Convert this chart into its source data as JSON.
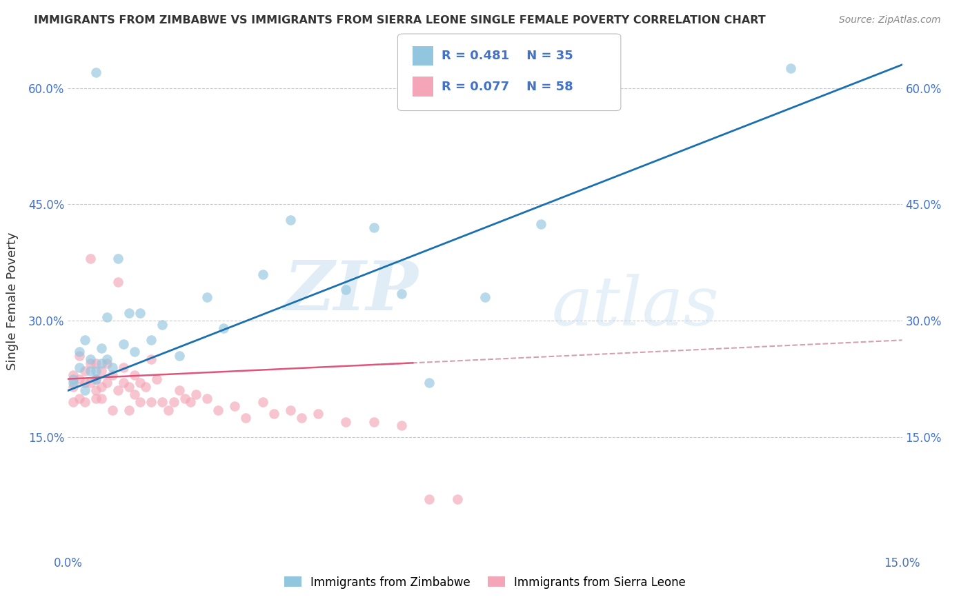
{
  "title": "IMMIGRANTS FROM ZIMBABWE VS IMMIGRANTS FROM SIERRA LEONE SINGLE FEMALE POVERTY CORRELATION CHART",
  "source": "Source: ZipAtlas.com",
  "ylabel": "Single Female Poverty",
  "legend_label1": "Immigrants from Zimbabwe",
  "legend_label2": "Immigrants from Sierra Leone",
  "r1": "0.481",
  "n1": "35",
  "r2": "0.077",
  "n2": "58",
  "color1": "#92c5de",
  "color2": "#f4a6b8",
  "line1_color": "#1a6faf",
  "line2_color": "#e0547a",
  "line2_dashed_color": "#d4a0b0",
  "xmin": 0.0,
  "xmax": 0.15,
  "ymin": 0.0,
  "ymax": 0.65,
  "background_color": "#ffffff",
  "title_color": "#333333",
  "axis_color": "#4472c4",
  "watermark_zip": "ZIP",
  "watermark_atlas": "atlas",
  "zimbabwe_x": [
    0.001,
    0.001,
    0.002,
    0.002,
    0.003,
    0.003,
    0.004,
    0.004,
    0.005,
    0.005,
    0.005,
    0.006,
    0.006,
    0.007,
    0.007,
    0.008,
    0.009,
    0.01,
    0.011,
    0.012,
    0.013,
    0.015,
    0.017,
    0.02,
    0.025,
    0.028,
    0.035,
    0.04,
    0.05,
    0.055,
    0.06,
    0.065,
    0.075,
    0.085,
    0.13
  ],
  "zimbabwe_y": [
    0.225,
    0.22,
    0.24,
    0.26,
    0.21,
    0.275,
    0.235,
    0.25,
    0.225,
    0.235,
    0.62,
    0.245,
    0.265,
    0.25,
    0.305,
    0.24,
    0.38,
    0.27,
    0.31,
    0.26,
    0.31,
    0.275,
    0.295,
    0.255,
    0.33,
    0.29,
    0.36,
    0.43,
    0.34,
    0.42,
    0.335,
    0.22,
    0.33,
    0.425,
    0.625
  ],
  "sierraleone_x": [
    0.001,
    0.001,
    0.001,
    0.002,
    0.002,
    0.002,
    0.003,
    0.003,
    0.003,
    0.004,
    0.004,
    0.004,
    0.005,
    0.005,
    0.005,
    0.005,
    0.006,
    0.006,
    0.006,
    0.007,
    0.007,
    0.008,
    0.008,
    0.009,
    0.009,
    0.01,
    0.01,
    0.011,
    0.011,
    0.012,
    0.012,
    0.013,
    0.013,
    0.014,
    0.015,
    0.015,
    0.016,
    0.017,
    0.018,
    0.019,
    0.02,
    0.021,
    0.022,
    0.023,
    0.025,
    0.027,
    0.03,
    0.032,
    0.035,
    0.037,
    0.04,
    0.042,
    0.045,
    0.05,
    0.055,
    0.06,
    0.065,
    0.07
  ],
  "sierraleone_y": [
    0.23,
    0.215,
    0.195,
    0.255,
    0.225,
    0.2,
    0.235,
    0.22,
    0.195,
    0.245,
    0.22,
    0.38,
    0.21,
    0.225,
    0.2,
    0.245,
    0.2,
    0.235,
    0.215,
    0.22,
    0.245,
    0.185,
    0.23,
    0.21,
    0.35,
    0.22,
    0.24,
    0.215,
    0.185,
    0.23,
    0.205,
    0.22,
    0.195,
    0.215,
    0.25,
    0.195,
    0.225,
    0.195,
    0.185,
    0.195,
    0.21,
    0.2,
    0.195,
    0.205,
    0.2,
    0.185,
    0.19,
    0.175,
    0.195,
    0.18,
    0.185,
    0.175,
    0.18,
    0.17,
    0.17,
    0.165,
    0.07,
    0.07
  ]
}
